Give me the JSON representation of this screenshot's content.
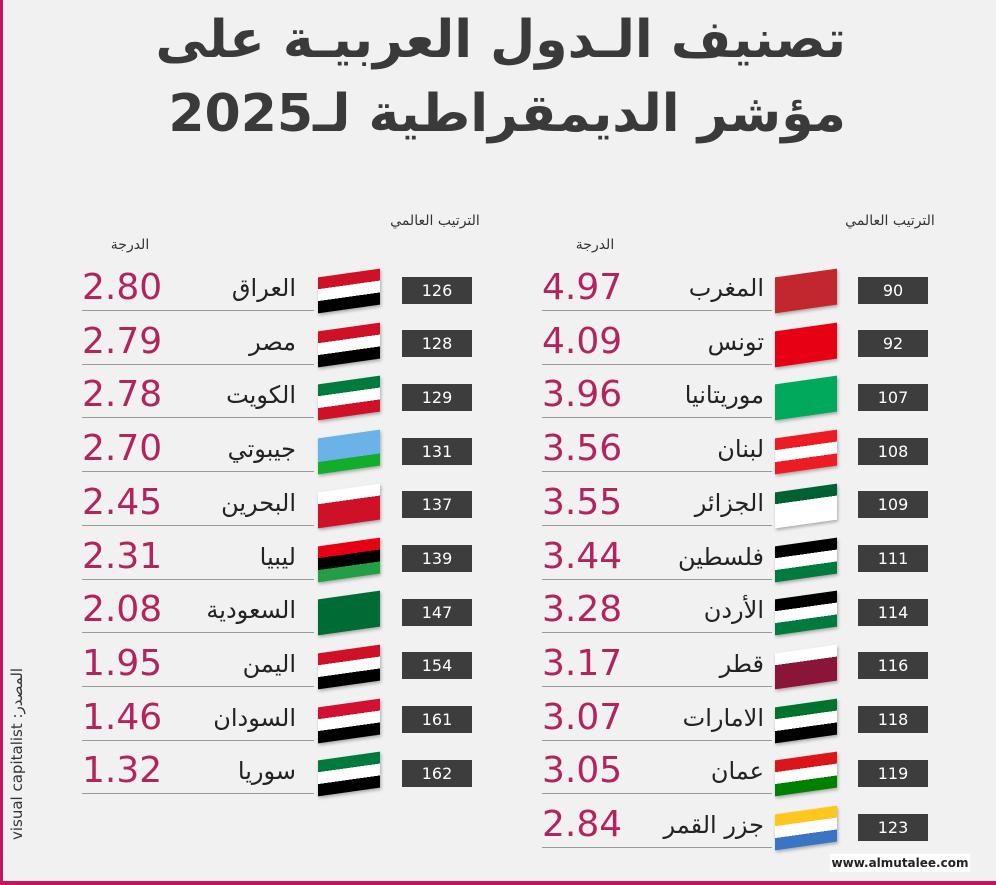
{
  "header": {
    "title_line1": "تصنيف الـدول العربيـة على",
    "title_line2": "مؤشر الديمقراطية لـ2025"
  },
  "columns": [
    {
      "rank_header": "الترتيب العالمي",
      "score_header": "الدرجة",
      "rows": [
        [
          "90",
          "المغرب",
          "4.97"
        ],
        [
          "92",
          "تونس",
          "4.09"
        ],
        [
          "107",
          "موريتانيا",
          "3.96"
        ],
        [
          "108",
          "لبنان",
          "3.56"
        ],
        [
          "109",
          "الجزائر",
          "3.55"
        ],
        [
          "111",
          "فلسطين",
          "3.44"
        ],
        [
          "114",
          "الأردن",
          "3.28"
        ],
        [
          "116",
          "قطر",
          "3.17"
        ],
        [
          "118",
          "الامارات",
          "3.07"
        ],
        [
          "119",
          "عمان",
          "3.05"
        ],
        [
          "123",
          "جزر القمر",
          "2.84"
        ]
      ]
    },
    {
      "rank_header": "الترتيب العالمي",
      "score_header": "الدرجة",
      "rows": [
        [
          "126",
          "العراق",
          "2.80"
        ],
        [
          "128",
          "مصر",
          "2.79"
        ],
        [
          "129",
          "الكويت",
          "2.78"
        ],
        [
          "131",
          "جيبوتي",
          "2.70"
        ],
        [
          "137",
          "البحرين",
          "2.45"
        ],
        [
          "139",
          "ليبيا",
          "2.31"
        ],
        [
          "147",
          "السعودية",
          "2.08"
        ],
        [
          "154",
          "اليمن",
          "1.95"
        ],
        [
          "161",
          "السودان",
          "1.46"
        ],
        [
          "162",
          "سوريا",
          "1.32"
        ]
      ]
    }
  ],
  "source": "المصدر: visual capitalist",
  "website": "www.almutalee.com"
}
